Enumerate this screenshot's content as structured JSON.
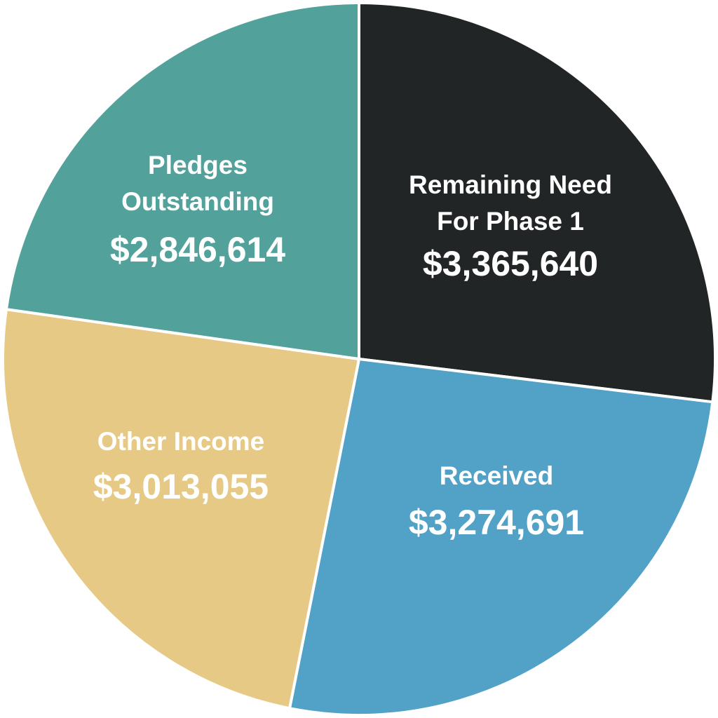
{
  "chart_data": {
    "type": "pie",
    "title": "",
    "start": "12 o'clock",
    "direction": "clockwise",
    "slices": [
      {
        "name_lines": [
          "Remaining Need",
          "For Phase 1"
        ],
        "value_label": "$3,365,640",
        "value": 3365640,
        "color": "#222526"
      },
      {
        "name_lines": [
          "Received"
        ],
        "value_label": "$3,274,691",
        "value": 3274691,
        "color": "#52a1c7"
      },
      {
        "name_lines": [
          "Other Income"
        ],
        "value_label": "$3,013,055",
        "value": 3013055,
        "color": "#e6c985"
      },
      {
        "name_lines": [
          "Pledges",
          "Outstanding"
        ],
        "value_label": "$2,846,614",
        "value": 2846614,
        "color": "#52a29b"
      }
    ]
  }
}
